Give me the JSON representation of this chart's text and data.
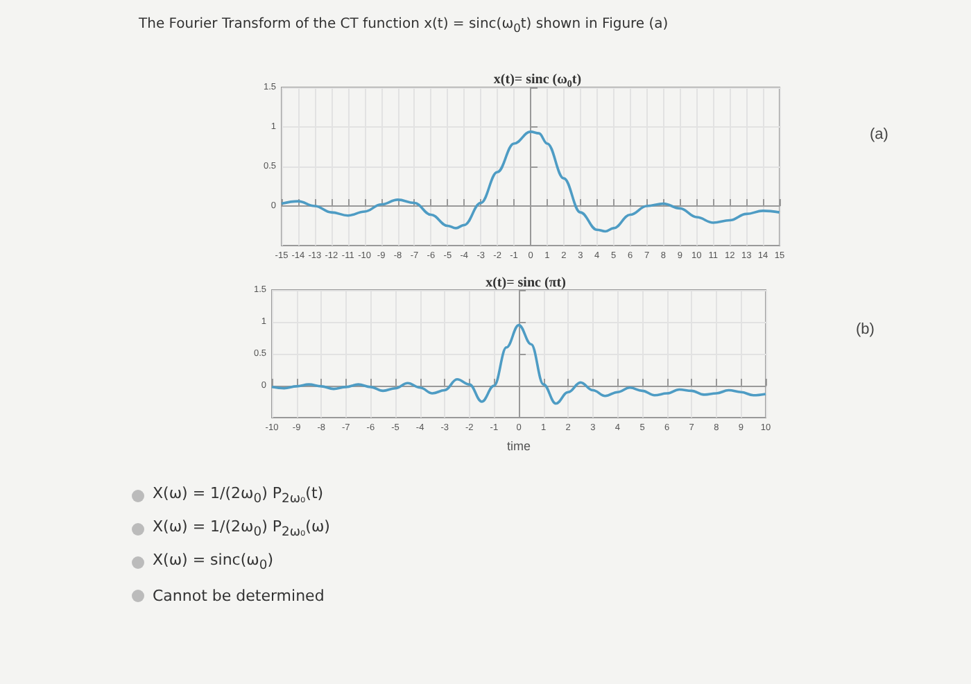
{
  "chart_data": [
    {
      "type": "other",
      "title": "The Fourier Transform of the CT function x(t) = sinc(ω$_{0}$t) shown in Figure (a)"
    },
    {
      "type": "line",
      "title": "x(t)= sinc (ω$_{0}$t)",
      "annotations": [
        "(a)"
      ],
      "grid": true,
      "xlim": [
        -15,
        15
      ],
      "xticks": [
        -15,
        -14,
        -13,
        -12,
        -11,
        -10,
        -9,
        -8,
        -7,
        -6,
        -5,
        -4,
        -3,
        -2,
        -1,
        0,
        1,
        2,
        3,
        4,
        5,
        6,
        7,
        8,
        9,
        10,
        11,
        12,
        13,
        14,
        15
      ],
      "ylim": [
        -0.5,
        1.5
      ],
      "yticks": [
        0,
        0.5,
        1,
        1.5
      ],
      "series": [
        {
          "color": "#4e9cc4",
          "x": [
            -15,
            -14,
            -13,
            -12,
            -11,
            -10,
            -9,
            -8,
            -7,
            -6,
            -5,
            -4.5,
            -4,
            -3,
            -2,
            -1,
            0,
            0.5,
            1,
            2,
            3,
            4,
            4.5,
            5,
            6,
            7,
            8,
            9,
            10,
            11,
            12,
            13,
            14,
            15
          ],
          "values": [
            0.03,
            0.06,
            0,
            -0.08,
            -0.12,
            -0.07,
            0.02,
            0.08,
            0.04,
            -0.11,
            -0.25,
            -0.28,
            -0.24,
            0.04,
            0.43,
            0.79,
            0.94,
            0.92,
            0.79,
            0.35,
            -0.08,
            -0.3,
            -0.32,
            -0.28,
            -0.11,
            0,
            0.03,
            -0.03,
            -0.14,
            -0.21,
            -0.18,
            -0.1,
            -0.06,
            -0.08
          ]
        }
      ]
    },
    {
      "type": "line",
      "title": "x(t)= sinc (πt)",
      "xlabel": "time",
      "annotations": [
        "(b)"
      ],
      "grid": true,
      "xlim": [
        -10,
        10
      ],
      "xticks": [
        -10,
        -9,
        -8,
        -7,
        -6,
        -5,
        -4,
        -3,
        -2,
        -1,
        0,
        1,
        2,
        3,
        4,
        5,
        6,
        7,
        8,
        9,
        10
      ],
      "ylim": [
        -0.5,
        1.5
      ],
      "yticks": [
        0,
        0.5,
        1,
        1.5
      ],
      "series": [
        {
          "color": "#4e9cc4",
          "x": [
            -10,
            -9.5,
            -9,
            -8.5,
            -8,
            -7.5,
            -7,
            -6.5,
            -6,
            -5.5,
            -5,
            -4.5,
            -4,
            -3.5,
            -3,
            -2.5,
            -2,
            -1.5,
            -1,
            -0.5,
            0,
            0.5,
            1,
            1.5,
            2,
            2.5,
            3,
            3.5,
            4,
            4.5,
            5,
            5.5,
            6,
            6.5,
            7,
            7.5,
            8,
            8.5,
            9,
            9.5,
            10
          ],
          "values": [
            -0.02,
            -0.04,
            -0.01,
            0.02,
            -0.01,
            -0.05,
            -0.02,
            0.02,
            -0.02,
            -0.08,
            -0.04,
            0.04,
            -0.03,
            -0.12,
            -0.07,
            0.1,
            0.02,
            -0.25,
            0,
            0.6,
            0.95,
            0.65,
            0.02,
            -0.28,
            -0.1,
            0.05,
            -0.07,
            -0.16,
            -0.1,
            -0.03,
            -0.08,
            -0.15,
            -0.12,
            -0.06,
            -0.08,
            -0.14,
            -0.12,
            -0.07,
            -0.1,
            -0.15,
            -0.13
          ]
        }
      ]
    },
    {
      "type": "other",
      "annotations": [
        "X(ω) = 1/(2ω$_{0}$) P$_{2ω₀}$(t)",
        "X(ω) = 1/(2ω$_{0}$) P$_{2ω₀}$(ω)",
        "X(ω) = sinc(ω$_{0}$)",
        "Cannot be determined"
      ]
    }
  ]
}
